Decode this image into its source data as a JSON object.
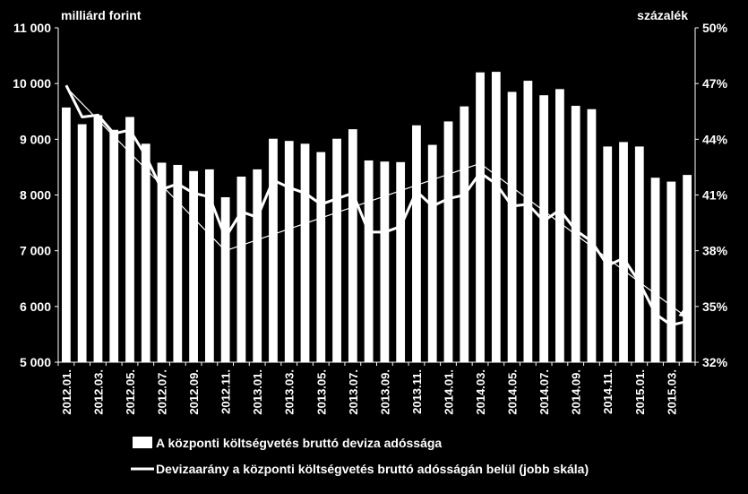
{
  "chart_data": {
    "type": "bar",
    "left_axis_label": "milliárd forint",
    "right_axis_label": "százalék",
    "y_left": {
      "min": 5000,
      "max": 11000,
      "ticks": [
        5000,
        6000,
        7000,
        8000,
        9000,
        10000,
        11000
      ],
      "tick_labels": [
        "5 000",
        "6 000",
        "7 000",
        "8 000",
        "9 000",
        "10 000",
        "11 000"
      ]
    },
    "y_right": {
      "min": 32,
      "max": 50,
      "ticks": [
        32,
        35,
        38,
        41,
        44,
        47,
        50
      ],
      "tick_labels": [
        "32%",
        "35%",
        "38%",
        "41%",
        "44%",
        "47%",
        "50%"
      ]
    },
    "x_tick_labels": [
      "2012.01.",
      "2012.03.",
      "2012.05.",
      "2012.07.",
      "2012.09.",
      "2012.11.",
      "2013.01.",
      "2013.03.",
      "2013.05.",
      "2013.07.",
      "2013.09.",
      "2013.11.",
      "2014.01.",
      "2014.03.",
      "2014.05.",
      "2014.07.",
      "2014.09.",
      "2014.11.",
      "2015.01.",
      "2015.03."
    ],
    "categories": [
      "2012.01.",
      "2012.02.",
      "2012.03.",
      "2012.04.",
      "2012.05.",
      "2012.06.",
      "2012.07.",
      "2012.08.",
      "2012.09.",
      "2012.10.",
      "2012.11.",
      "2012.12.",
      "2013.01.",
      "2013.02.",
      "2013.03.",
      "2013.04.",
      "2013.05.",
      "2013.06.",
      "2013.07.",
      "2013.08.",
      "2013.09.",
      "2013.10.",
      "2013.11.",
      "2013.12.",
      "2014.01.",
      "2014.02.",
      "2014.03.",
      "2014.04.",
      "2014.05.",
      "2014.06.",
      "2014.07.",
      "2014.08.",
      "2014.09.",
      "2014.10.",
      "2014.11.",
      "2014.12.",
      "2015.01.",
      "2015.02.",
      "2015.03.",
      "2015.04."
    ],
    "series": [
      {
        "name": "A központi költségvetés bruttó deviza adóssága",
        "type": "bar",
        "axis": "left",
        "values": [
          9570,
          9270,
          9430,
          9170,
          9400,
          8920,
          8580,
          8540,
          8430,
          8460,
          7960,
          8330,
          8460,
          9010,
          8970,
          8920,
          8770,
          9010,
          9180,
          8620,
          8600,
          8590,
          9250,
          8900,
          9320,
          9590,
          10200,
          10210,
          9850,
          10050,
          9790,
          9900,
          9600,
          9540,
          8870,
          8950,
          8870,
          8310,
          8240,
          8360
        ]
      },
      {
        "name": "Devizaarány a központi költségvetés bruttó adósságán belül (jobb skála)",
        "type": "line",
        "axis": "right",
        "values": [
          46.9,
          45.2,
          45.3,
          44.3,
          44.5,
          43.1,
          41.3,
          41.6,
          41.1,
          40.9,
          38.7,
          40.1,
          39.8,
          41.8,
          41.4,
          41.1,
          40.5,
          40.8,
          41.1,
          39.0,
          39.0,
          39.3,
          41.2,
          40.4,
          40.8,
          41.0,
          42.2,
          41.6,
          40.4,
          40.5,
          39.6,
          40.2,
          39.1,
          38.5,
          37.2,
          37.6,
          36.3,
          34.6,
          34.0,
          34.2
        ]
      },
      {
        "type": "trend",
        "axis": "right",
        "points": [
          [
            0,
            46.8
          ],
          [
            10,
            38.0
          ],
          [
            26,
            42.7
          ],
          [
            39,
            34.4
          ]
        ]
      }
    ],
    "grid": false,
    "legend_position": "bottom-left"
  }
}
